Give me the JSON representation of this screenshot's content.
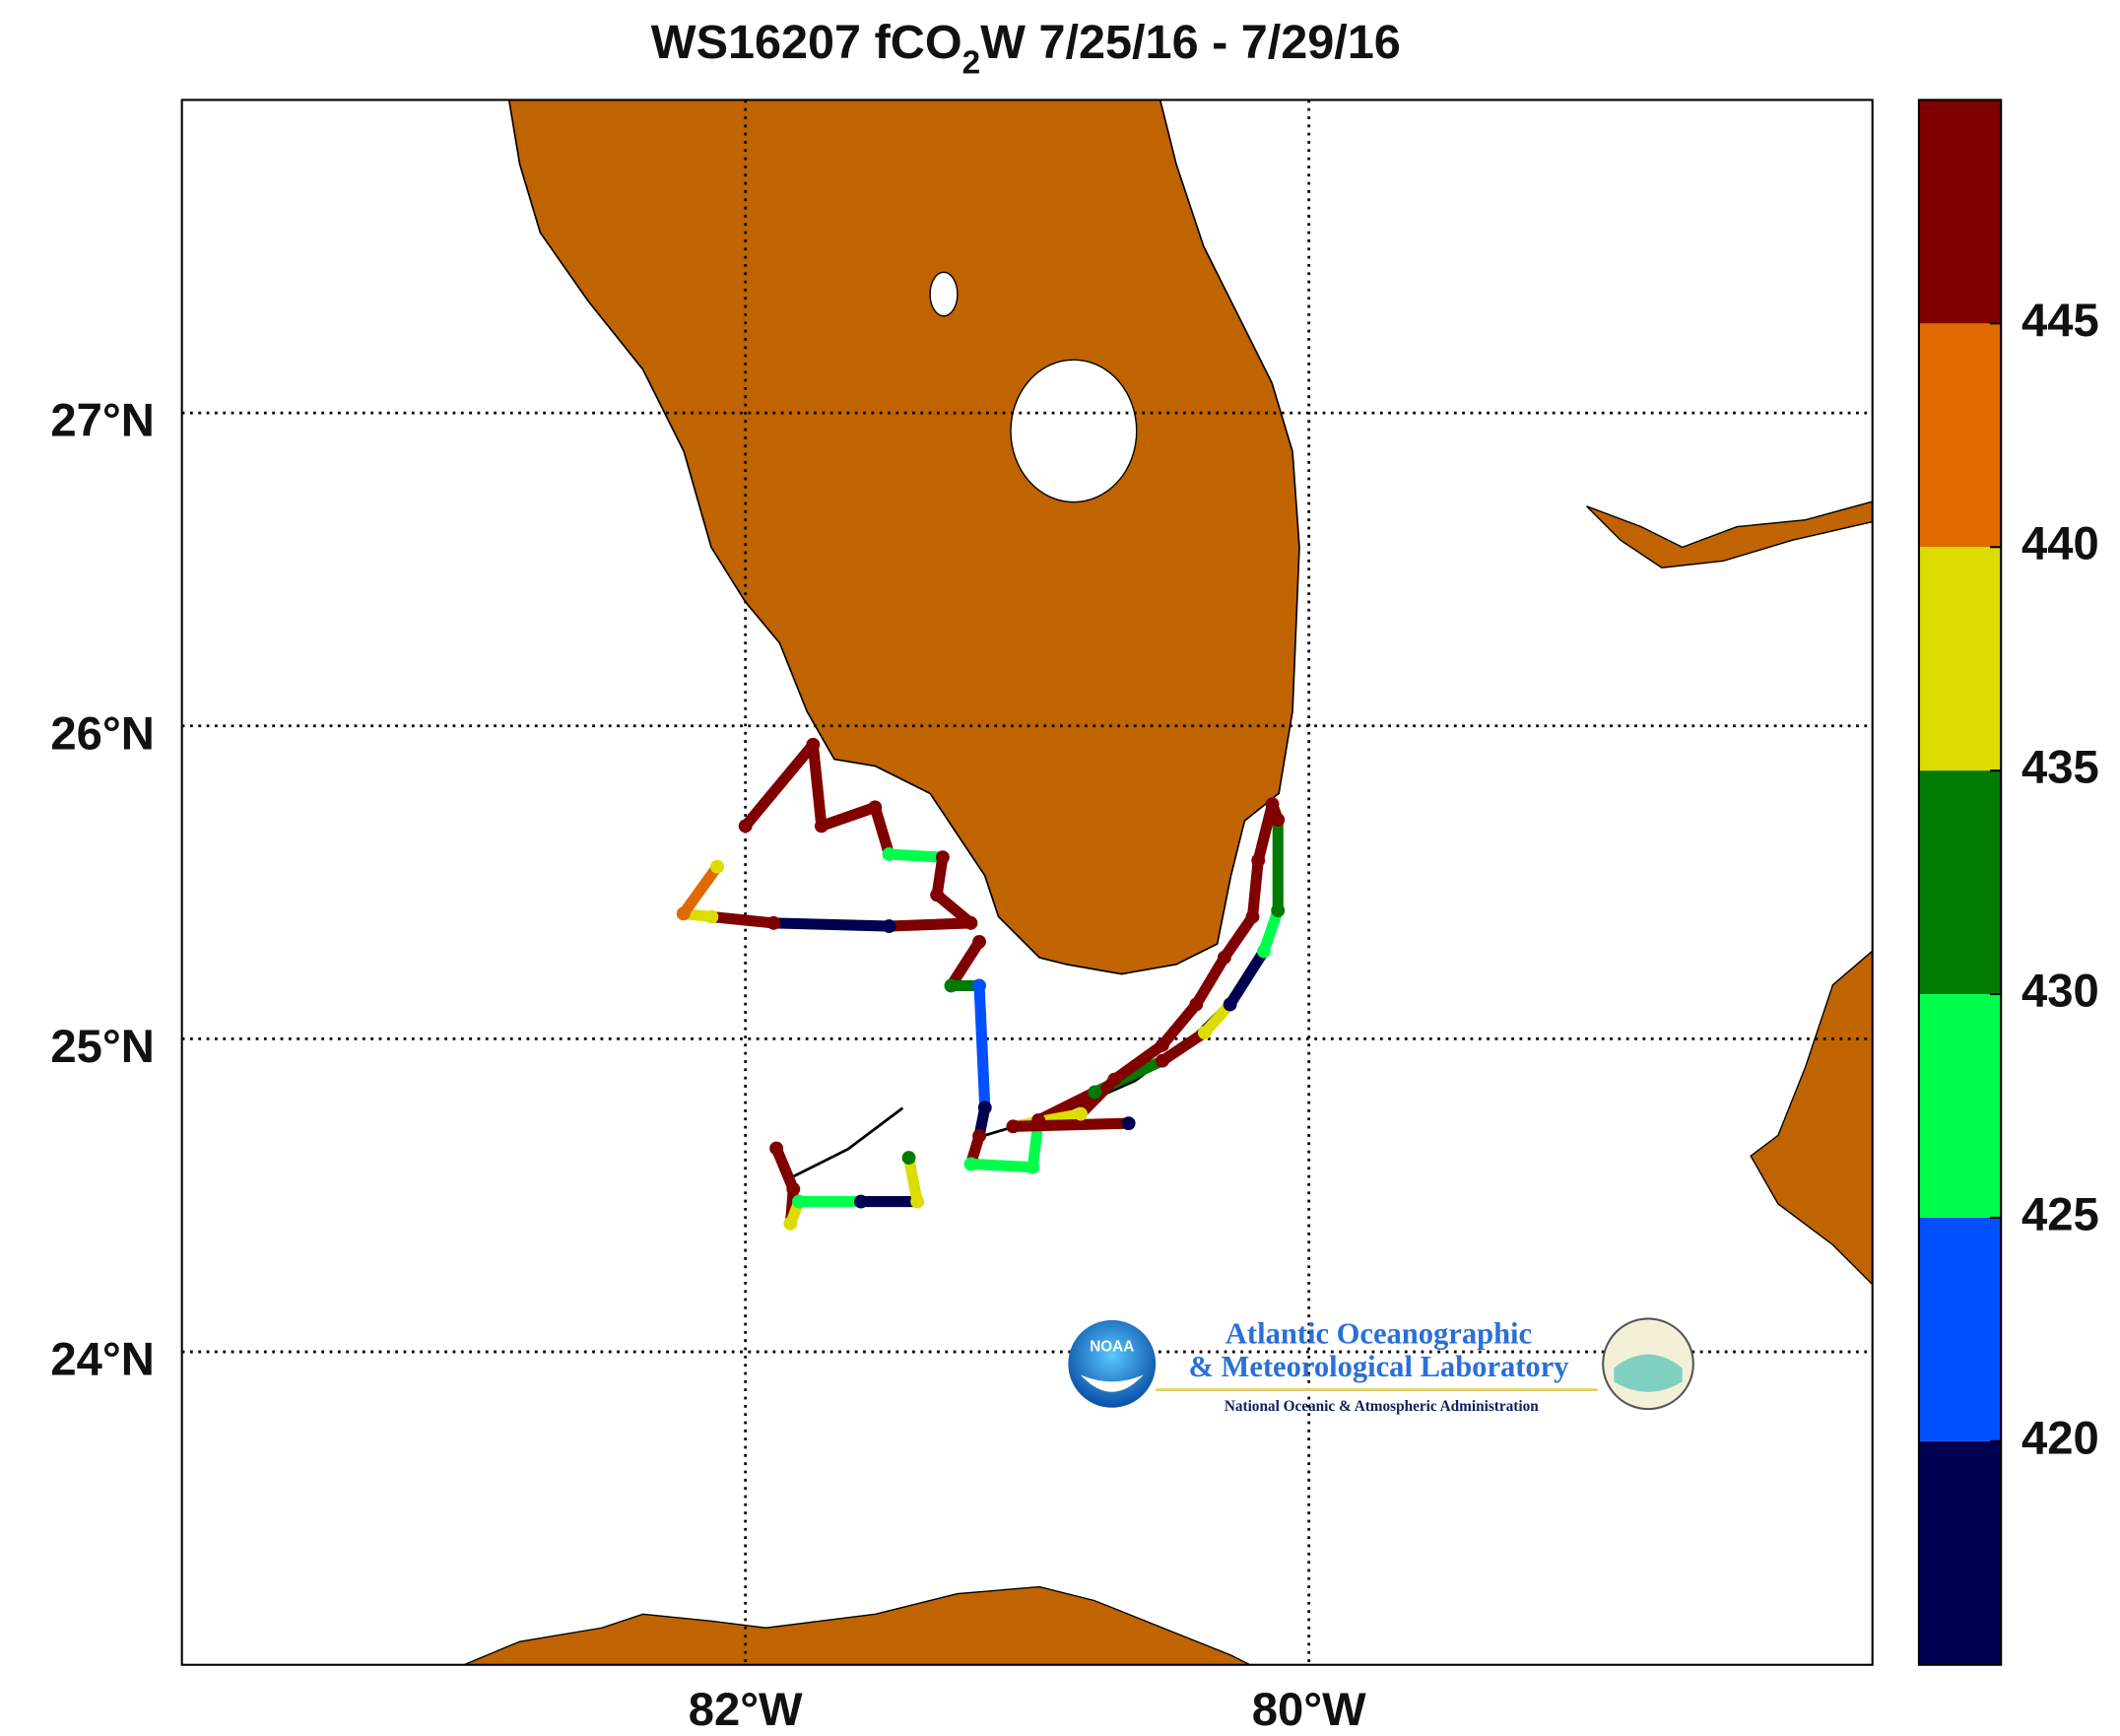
{
  "chart_data": {
    "type": "map",
    "title_parts": [
      "WS16207  fCO",
      "2",
      "W 7/25/16 - 7/29/16"
    ],
    "xlim": [
      -84,
      -78
    ],
    "ylim": [
      23,
      28
    ],
    "xticks": [
      {
        "value": -82,
        "label": "82°W"
      },
      {
        "value": -80,
        "label": "80°W"
      }
    ],
    "yticks": [
      {
        "value": 24,
        "label": "24°N"
      },
      {
        "value": 25,
        "label": "25°N"
      },
      {
        "value": 26,
        "label": "26°N"
      },
      {
        "value": 27,
        "label": "27°N"
      }
    ],
    "grid": true,
    "land_color": "#bf6400",
    "track": {
      "x": [
        -82.0,
        -81.76,
        -81.73,
        -81.54,
        -81.49,
        -81.3,
        -81.32,
        -81.2,
        -81.49,
        -81.9,
        -82.12,
        -82.22,
        -82.1,
        null,
        -81.17,
        -81.27,
        -81.17,
        -81.15,
        -81.17,
        -81.2,
        -80.98,
        -80.96,
        -80.76,
        -80.52,
        -80.37,
        -80.28,
        -80.16,
        -80.11,
        -80.11,
        -80.13,
        -80.18,
        -80.2,
        -80.3,
        -80.4,
        -80.52,
        -80.69,
        -80.81,
        -81.05,
        -80.64,
        null,
        -81.89,
        -81.83,
        -81.84,
        -81.81,
        -81.59,
        -81.39,
        -81.42
      ],
      "y": [
        25.68,
        25.94,
        25.68,
        25.74,
        25.59,
        25.58,
        25.46,
        25.37,
        25.36,
        25.37,
        25.39,
        25.4,
        25.55,
        null,
        25.31,
        25.17,
        25.17,
        24.78,
        24.69,
        24.6,
        24.59,
        24.74,
        24.83,
        24.93,
        25.02,
        25.11,
        25.28,
        25.41,
        25.7,
        25.75,
        25.57,
        25.39,
        25.26,
        25.11,
        24.98,
        24.87,
        24.76,
        24.72,
        24.73,
        null,
        24.65,
        24.52,
        24.41,
        24.48,
        24.48,
        24.48,
        24.62
      ],
      "values": [
        447,
        447,
        447,
        447,
        428,
        447,
        447,
        447,
        418,
        447,
        437,
        442,
        437,
        null,
        447,
        430,
        420,
        418,
        447,
        425,
        425,
        447,
        430,
        447,
        437,
        418,
        425,
        430,
        447,
        447,
        447,
        447,
        447,
        447,
        447,
        447,
        437,
        447,
        416,
        null,
        447,
        447,
        437,
        425,
        418,
        437,
        430
      ]
    },
    "colorbar": {
      "clim": [
        415,
        450
      ],
      "ticks": [
        420,
        425,
        430,
        435,
        440,
        445
      ],
      "colors": [
        "#000050",
        "#0050ff",
        "#00ff4c",
        "#007a00",
        "#dcdc00",
        "#e06a00",
        "#800000"
      ]
    },
    "logo": {
      "badge": "NOAA",
      "line1": "Atlantic Oceanographic",
      "line2": "& Meteorological Laboratory",
      "line3": "National Oceanic & Atmospheric Administration"
    }
  }
}
